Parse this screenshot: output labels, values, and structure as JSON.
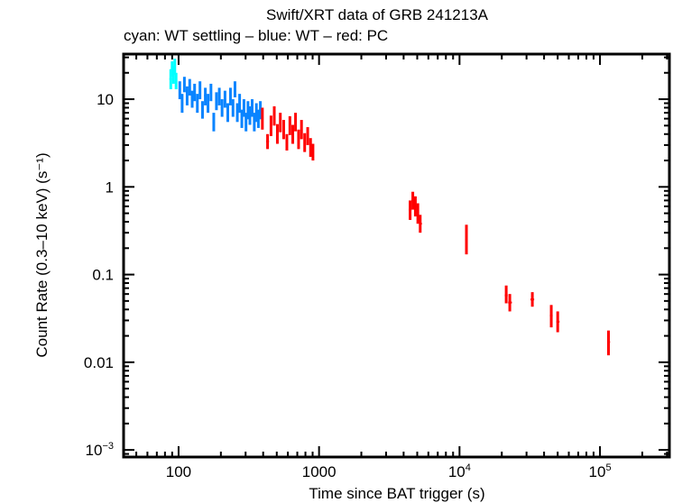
{
  "chart_data": {
    "type": "scatter",
    "title": "Swift/XRT data of GRB 241213A",
    "subtitle": "cyan: WT settling – blue: WT – red: PC",
    "xlabel": "Time since BAT trigger (s)",
    "ylabel": "Count Rate (0.3–10 keV) (s⁻¹)",
    "xscale": "log",
    "yscale": "log",
    "xlim": [
      40.6,
      312000
    ],
    "ylim": [
      0.00083,
      32.7
    ],
    "grid": false,
    "legend": "none",
    "x_ticks": [
      {
        "value": 100,
        "label": "100",
        "sup": ""
      },
      {
        "value": 1000,
        "label": "1000",
        "sup": ""
      },
      {
        "value": 10000,
        "label": "10",
        "sup": "4"
      },
      {
        "value": 100000,
        "label": "10",
        "sup": "5"
      }
    ],
    "y_ticks": [
      {
        "value": 10,
        "label": "10",
        "sup": ""
      },
      {
        "value": 1,
        "label": "1",
        "sup": ""
      },
      {
        "value": 0.1,
        "label": "0.1",
        "sup": ""
      },
      {
        "value": 0.01,
        "label": "0.01",
        "sup": ""
      },
      {
        "value": 0.001,
        "label": "10",
        "sup": "−3"
      }
    ],
    "series": [
      {
        "name": "WT settling",
        "color": "#00ffff",
        "points": [
          {
            "x": 88,
            "y": 17,
            "ylo": 13,
            "yhi": 22,
            "xlo": 86,
            "xhi": 90
          },
          {
            "x": 90,
            "y": 22,
            "ylo": 18,
            "yhi": 27,
            "xlo": 89,
            "xhi": 91
          },
          {
            "x": 92,
            "y": 19,
            "ylo": 15,
            "yhi": 24,
            "xlo": 91,
            "xhi": 93
          },
          {
            "x": 94,
            "y": 24,
            "ylo": 19,
            "yhi": 29,
            "xlo": 93,
            "xhi": 95
          },
          {
            "x": 96,
            "y": 16,
            "ylo": 13,
            "yhi": 20,
            "xlo": 95,
            "xhi": 97
          }
        ]
      },
      {
        "name": "WT",
        "color": "#0a84ff",
        "points": [
          {
            "x": 102,
            "y": 13,
            "ylo": 10,
            "yhi": 16,
            "xlo": 101,
            "xhi": 104
          },
          {
            "x": 106,
            "y": 9,
            "ylo": 7,
            "yhi": 11.5,
            "xlo": 105,
            "xhi": 108
          },
          {
            "x": 110,
            "y": 15,
            "ylo": 12,
            "yhi": 18,
            "xlo": 108,
            "xhi": 112
          },
          {
            "x": 115,
            "y": 11,
            "ylo": 8.5,
            "yhi": 14,
            "xlo": 113,
            "xhi": 117
          },
          {
            "x": 120,
            "y": 14,
            "ylo": 11,
            "yhi": 17,
            "xlo": 118,
            "xhi": 122
          },
          {
            "x": 125,
            "y": 10,
            "ylo": 8,
            "yhi": 12.5,
            "xlo": 123,
            "xhi": 127
          },
          {
            "x": 130,
            "y": 12,
            "ylo": 9.5,
            "yhi": 15,
            "xlo": 128,
            "xhi": 132
          },
          {
            "x": 136,
            "y": 9,
            "ylo": 7,
            "yhi": 11.5,
            "xlo": 134,
            "xhi": 138
          },
          {
            "x": 142,
            "y": 13,
            "ylo": 10,
            "yhi": 16,
            "xlo": 140,
            "xhi": 144
          },
          {
            "x": 148,
            "y": 7.5,
            "ylo": 6,
            "yhi": 9.5,
            "xlo": 146,
            "xhi": 150
          },
          {
            "x": 155,
            "y": 11,
            "ylo": 8.5,
            "yhi": 13.5,
            "xlo": 152,
            "xhi": 158
          },
          {
            "x": 162,
            "y": 9,
            "ylo": 7,
            "yhi": 11.5,
            "xlo": 159,
            "xhi": 165
          },
          {
            "x": 170,
            "y": 12,
            "ylo": 9.5,
            "yhi": 15,
            "xlo": 167,
            "xhi": 173
          },
          {
            "x": 178,
            "y": 5.5,
            "ylo": 4.3,
            "yhi": 7,
            "xlo": 175,
            "xhi": 181
          },
          {
            "x": 186,
            "y": 9.5,
            "ylo": 7.5,
            "yhi": 12,
            "xlo": 183,
            "xhi": 189
          },
          {
            "x": 195,
            "y": 11,
            "ylo": 8.5,
            "yhi": 13.5,
            "xlo": 192,
            "xhi": 198
          },
          {
            "x": 204,
            "y": 8,
            "ylo": 6.3,
            "yhi": 10,
            "xlo": 200,
            "xhi": 208
          },
          {
            "x": 214,
            "y": 10,
            "ylo": 8,
            "yhi": 12.5,
            "xlo": 210,
            "xhi": 218
          },
          {
            "x": 224,
            "y": 7,
            "ylo": 5.5,
            "yhi": 9,
            "xlo": 220,
            "xhi": 228
          },
          {
            "x": 234,
            "y": 11,
            "ylo": 8.5,
            "yhi": 13.5,
            "xlo": 230,
            "xhi": 238
          },
          {
            "x": 244,
            "y": 8,
            "ylo": 6.3,
            "yhi": 10,
            "xlo": 240,
            "xhi": 248
          },
          {
            "x": 252,
            "y": 13,
            "ylo": 10.5,
            "yhi": 16,
            "xlo": 249,
            "xhi": 255
          },
          {
            "x": 262,
            "y": 7,
            "ylo": 5.5,
            "yhi": 9,
            "xlo": 258,
            "xhi": 266
          },
          {
            "x": 272,
            "y": 9,
            "ylo": 7,
            "yhi": 11.5,
            "xlo": 268,
            "xhi": 276
          },
          {
            "x": 282,
            "y": 6,
            "ylo": 4.7,
            "yhi": 7.6,
            "xlo": 278,
            "xhi": 286
          },
          {
            "x": 292,
            "y": 8,
            "ylo": 6.3,
            "yhi": 10,
            "xlo": 288,
            "xhi": 296
          },
          {
            "x": 302,
            "y": 5.5,
            "ylo": 4.3,
            "yhi": 7,
            "xlo": 298,
            "xhi": 306
          },
          {
            "x": 312,
            "y": 7.5,
            "ylo": 5.9,
            "yhi": 9.5,
            "xlo": 308,
            "xhi": 316
          },
          {
            "x": 322,
            "y": 6.5,
            "ylo": 5.1,
            "yhi": 8.3,
            "xlo": 318,
            "xhi": 326
          },
          {
            "x": 334,
            "y": 8,
            "ylo": 6.3,
            "yhi": 10,
            "xlo": 330,
            "xhi": 338
          },
          {
            "x": 346,
            "y": 5.5,
            "ylo": 4.3,
            "yhi": 7,
            "xlo": 342,
            "xhi": 350
          },
          {
            "x": 358,
            "y": 7,
            "ylo": 5.5,
            "yhi": 9,
            "xlo": 354,
            "xhi": 362
          },
          {
            "x": 370,
            "y": 6,
            "ylo": 4.7,
            "yhi": 7.6,
            "xlo": 366,
            "xhi": 374
          },
          {
            "x": 382,
            "y": 7.5,
            "ylo": 5.9,
            "yhi": 9.5,
            "xlo": 378,
            "xhi": 386
          }
        ]
      },
      {
        "name": "PC",
        "color": "#ff0000",
        "points": [
          {
            "x": 395,
            "y": 6,
            "ylo": 4.5,
            "yhi": 8,
            "xlo": 388,
            "xhi": 402
          },
          {
            "x": 430,
            "y": 3.3,
            "ylo": 2.7,
            "yhi": 4.0,
            "xlo": 420,
            "xhi": 440
          },
          {
            "x": 455,
            "y": 5,
            "ylo": 3.8,
            "yhi": 6.5,
            "xlo": 448,
            "xhi": 462
          },
          {
            "x": 480,
            "y": 6.5,
            "ylo": 5,
            "yhi": 8.3,
            "xlo": 472,
            "xhi": 488
          },
          {
            "x": 505,
            "y": 4,
            "ylo": 3.1,
            "yhi": 5.2,
            "xlo": 497,
            "xhi": 513
          },
          {
            "x": 530,
            "y": 5.5,
            "ylo": 4.2,
            "yhi": 7,
            "xlo": 522,
            "xhi": 538
          },
          {
            "x": 560,
            "y": 4.5,
            "ylo": 3.5,
            "yhi": 5.8,
            "xlo": 550,
            "xhi": 570
          },
          {
            "x": 590,
            "y": 3.2,
            "ylo": 2.6,
            "yhi": 4.0,
            "xlo": 580,
            "xhi": 600
          },
          {
            "x": 620,
            "y": 5,
            "ylo": 3.9,
            "yhi": 6.4,
            "xlo": 610,
            "xhi": 630
          },
          {
            "x": 650,
            "y": 4,
            "ylo": 3.1,
            "yhi": 5.1,
            "xlo": 640,
            "xhi": 660
          },
          {
            "x": 680,
            "y": 5.5,
            "ylo": 4.3,
            "yhi": 7,
            "xlo": 670,
            "xhi": 690
          },
          {
            "x": 715,
            "y": 3.5,
            "ylo": 2.7,
            "yhi": 4.5,
            "xlo": 705,
            "xhi": 725
          },
          {
            "x": 750,
            "y": 4.5,
            "ylo": 3.5,
            "yhi": 5.8,
            "xlo": 740,
            "xhi": 760
          },
          {
            "x": 790,
            "y": 3.2,
            "ylo": 2.5,
            "yhi": 4.1,
            "xlo": 780,
            "xhi": 800
          },
          {
            "x": 830,
            "y": 3.8,
            "ylo": 3.0,
            "yhi": 4.8,
            "xlo": 820,
            "xhi": 840
          },
          {
            "x": 870,
            "y": 2.8,
            "ylo": 2.2,
            "yhi": 3.6,
            "xlo": 860,
            "xhi": 880
          },
          {
            "x": 905,
            "y": 2.5,
            "ylo": 2.0,
            "yhi": 3.1,
            "xlo": 895,
            "xhi": 915
          },
          {
            "x": 4450,
            "y": 0.55,
            "ylo": 0.42,
            "yhi": 0.7,
            "xlo": 4350,
            "xhi": 4550
          },
          {
            "x": 4650,
            "y": 0.7,
            "ylo": 0.55,
            "yhi": 0.88,
            "xlo": 4550,
            "xhi": 4750
          },
          {
            "x": 4850,
            "y": 0.6,
            "ylo": 0.46,
            "yhi": 0.78,
            "xlo": 4750,
            "xhi": 4950
          },
          {
            "x": 5050,
            "y": 0.5,
            "ylo": 0.38,
            "yhi": 0.65,
            "xlo": 4950,
            "xhi": 5150
          },
          {
            "x": 5250,
            "y": 0.38,
            "ylo": 0.3,
            "yhi": 0.48,
            "xlo": 5150,
            "xhi": 5400
          },
          {
            "x": 11200,
            "y": 0.25,
            "ylo": 0.17,
            "yhi": 0.37,
            "xlo": 11000,
            "xhi": 11400
          },
          {
            "x": 21500,
            "y": 0.058,
            "ylo": 0.047,
            "yhi": 0.075,
            "xlo": 21000,
            "xhi": 22000
          },
          {
            "x": 22800,
            "y": 0.048,
            "ylo": 0.038,
            "yhi": 0.06,
            "xlo": 22200,
            "xhi": 23600
          },
          {
            "x": 33000,
            "y": 0.052,
            "ylo": 0.043,
            "yhi": 0.063,
            "xlo": 32000,
            "xhi": 34000
          },
          {
            "x": 45000,
            "y": 0.034,
            "ylo": 0.025,
            "yhi": 0.045,
            "xlo": 44000,
            "xhi": 46000
          },
          {
            "x": 50000,
            "y": 0.029,
            "ylo": 0.022,
            "yhi": 0.038,
            "xlo": 49000,
            "xhi": 51500
          },
          {
            "x": 115000,
            "y": 0.017,
            "ylo": 0.012,
            "yhi": 0.023,
            "xlo": 113000,
            "xhi": 118000
          }
        ]
      }
    ]
  }
}
